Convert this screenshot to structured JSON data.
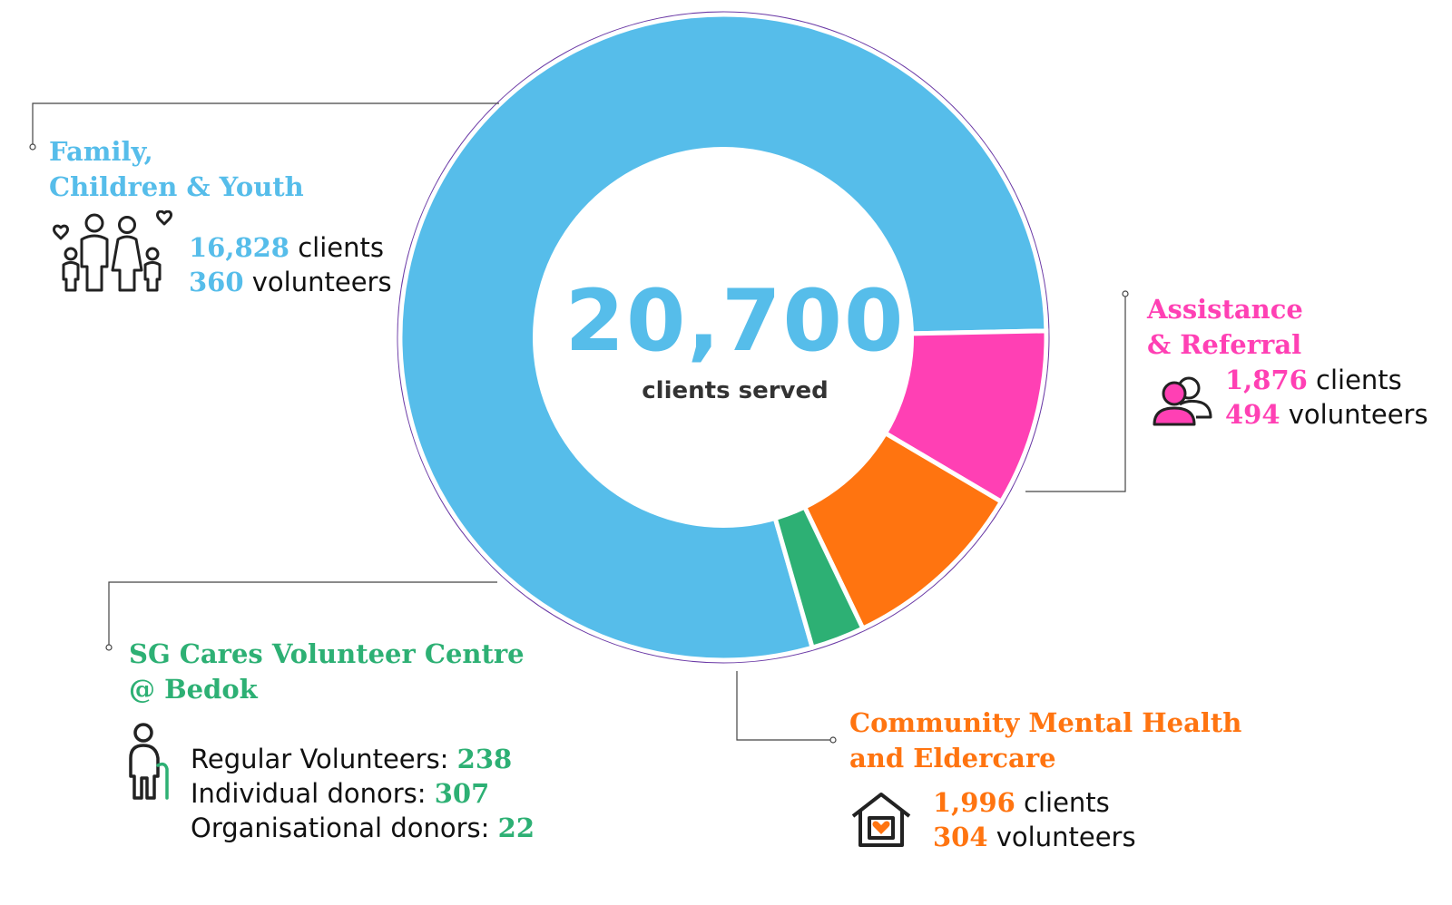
{
  "center": {
    "total": "20,700",
    "subtitle": "clients served"
  },
  "colors": {
    "family": "#56bdea",
    "assistance": "#ff40b4",
    "mental": "#ff7410",
    "sgcares": "#2db074",
    "ring_outline": "#6b3aa6"
  },
  "chart_data": {
    "type": "pie",
    "variant": "donut",
    "categories": [
      "Family, Children & Youth",
      "Assistance & Referral",
      "Community Mental Health and Eldercare",
      "SG Cares Volunteer Centre @ Bedok"
    ],
    "values": [
      16828,
      1876,
      1996,
      567
    ],
    "total_label": "20,700",
    "legend": "callouts"
  },
  "family": {
    "title_line1": "Family,",
    "title_line2": "Children & Youth",
    "clients_num": "16,828",
    "clients_label": "clients",
    "volunteers_num": "360",
    "volunteers_label": "volunteers",
    "icon": "family-icon"
  },
  "assistance": {
    "title_line1": "Assistance",
    "title_line2": "& Referral",
    "clients_num": "1,876",
    "clients_label": "clients",
    "volunteers_num": "494",
    "volunteers_label": "volunteers",
    "icon": "people-icon"
  },
  "mental": {
    "title_line1": "Community Mental Health",
    "title_line2": "and Eldercare",
    "clients_num": "1,996",
    "clients_label": "clients",
    "volunteers_num": "304",
    "volunteers_label": "volunteers",
    "icon": "house-heart-icon"
  },
  "sgcares": {
    "title_line1": "SG Cares Volunteer Centre",
    "title_line2": "@ Bedok",
    "regular_label": "Regular Volunteers:",
    "regular_num": "238",
    "individual_label": "Individual donors:",
    "individual_num": "307",
    "org_label": "Organisational donors:",
    "org_num": "22",
    "icon": "elderly-person-icon"
  }
}
